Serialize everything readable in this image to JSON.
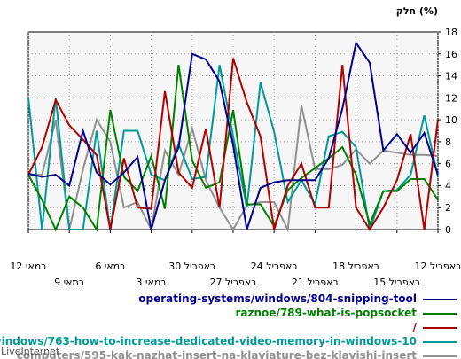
{
  "chart_data": {
    "type": "line",
    "y_title": "חלק (%)",
    "ylim": [
      0,
      18
    ],
    "yticks": [
      0,
      2,
      4,
      6,
      8,
      10,
      12,
      14,
      16,
      18
    ],
    "grid": true,
    "x_tick_labels_row1": [
      {
        "label": "12 באפריל",
        "index": 0
      },
      {
        "label": "18 באפריל",
        "index": 6
      },
      {
        "label": "24 באפריל",
        "index": 12
      },
      {
        "label": "30 באפריל",
        "index": 18
      },
      {
        "label": "6 במאי",
        "index": 24
      },
      {
        "label": "12 במאי",
        "index": 30
      }
    ],
    "x_tick_labels_row2": [
      {
        "label": "15 באפריל",
        "index": 3
      },
      {
        "label": "21 באפריל",
        "index": 9
      },
      {
        "label": "27 באפריל",
        "index": 15
      },
      {
        "label": "3 במאי",
        "index": 21
      },
      {
        "label": "9 במאי",
        "index": 27
      }
    ],
    "series": [
      {
        "name": "operating-systems/windows/804-snipping-tool",
        "color": "#00008b",
        "values": [
          5,
          8.8,
          7,
          8.7,
          7.2,
          15.2,
          17,
          11,
          6.5,
          4.5,
          4.5,
          4.5,
          4.3,
          3.8,
          0,
          7.7,
          13.5,
          15.5,
          16,
          7.5,
          4.5,
          0,
          6.6,
          5.2,
          4.1,
          5.2,
          9,
          4,
          5,
          4.8,
          5.1
        ]
      },
      {
        "name": "raznoe/789-what-is-popsocket",
        "color": "#008000",
        "values": [
          2.7,
          4.6,
          4.6,
          3.5,
          3.5,
          0.5,
          5,
          7.5,
          6.5,
          5.6,
          4.7,
          3.6,
          0.3,
          2.3,
          2.3,
          10.9,
          4.3,
          3.8,
          6.3,
          15,
          1.9,
          6.7,
          3.5,
          4.8,
          10.9,
          0,
          2,
          3,
          0,
          2.7,
          5
        ]
      },
      {
        "name": "/",
        "color": "#b00000",
        "values": [
          10,
          0,
          8.7,
          4.5,
          2,
          0,
          2,
          15,
          2,
          2,
          6,
          4,
          0,
          8.5,
          11.6,
          15.6,
          2,
          9.2,
          3.8,
          5.2,
          12.6,
          1.9,
          2,
          6.5,
          0,
          6.8,
          8.2,
          9.5,
          11.8,
          7.5,
          5
        ]
      },
      {
        "name": "ms/windows/763-how-to-increase-dedicated-video-memory-in-windows-10",
        "color": "#009999",
        "values": [
          4.8,
          10.4,
          5,
          3.6,
          3.5,
          0,
          7.5,
          8.9,
          8.5,
          2.3,
          4.5,
          2.5,
          8.9,
          13.4,
          2,
          8.5,
          15,
          4.8,
          4.6,
          7.8,
          4.5,
          5,
          9,
          9,
          0,
          9,
          0,
          0,
          12,
          0,
          12
        ]
      },
      {
        "name": "computers/595-kak-nazhat-insert-na-klaviature-bez-klavishi-insert",
        "color": "#909090",
        "values": [
          6.7,
          6.8,
          6.8,
          7,
          7.2,
          6,
          7.3,
          5.9,
          5.5,
          5.5,
          11.3,
          0,
          2.5,
          2.5,
          2.2,
          0,
          2,
          4.5,
          9.2,
          5,
          7.2,
          0,
          2.5,
          2,
          8,
          10,
          5.5,
          0,
          10,
          5,
          5
        ]
      }
    ]
  },
  "watermark": "LiveInternet"
}
